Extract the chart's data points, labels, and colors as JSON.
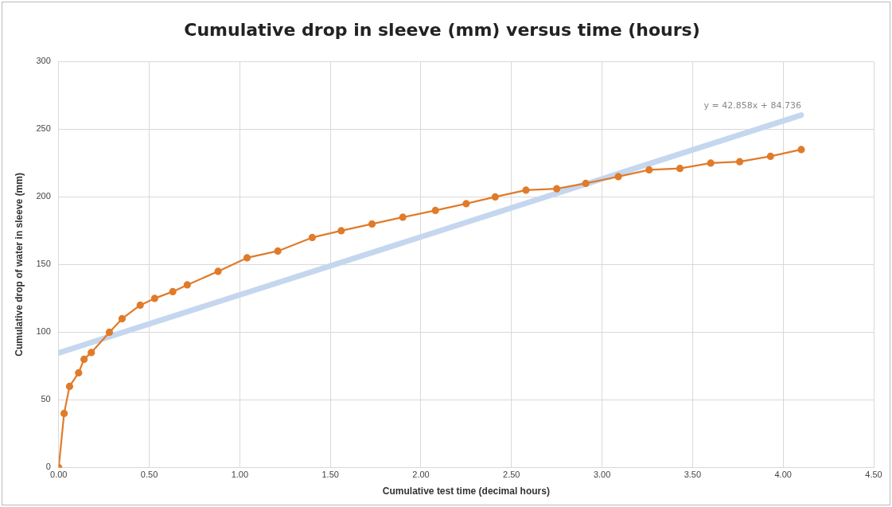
{
  "chart_data": {
    "type": "line",
    "title": "Cumulative drop in sleeve (mm) versus time (hours)",
    "xlabel": "Cumulative test time (decimal hours)",
    "ylabel": "Cumulative drop of water in sleeve (mm)",
    "xlim": [
      0,
      4.5
    ],
    "xticks": [
      {
        "value": 0,
        "label": "0.00"
      },
      {
        "value": 0.5,
        "label": "0.50"
      },
      {
        "value": 1,
        "label": "1.00"
      },
      {
        "value": 1.5,
        "label": "1.50"
      },
      {
        "value": 2,
        "label": "2.00"
      },
      {
        "value": 2.5,
        "label": "2.50"
      },
      {
        "value": 3,
        "label": "3.00"
      },
      {
        "value": 3.5,
        "label": "3.50"
      },
      {
        "value": 4,
        "label": "4.00"
      },
      {
        "value": 4.5,
        "label": "4.50"
      }
    ],
    "ylim": [
      0,
      300
    ],
    "yticks": [
      0,
      50,
      100,
      150,
      200,
      250,
      300
    ],
    "grid": true,
    "legend": false,
    "marker": "circle",
    "line_style": "solid",
    "series": [
      {
        "color": "#e07b2a",
        "x": [
          0,
          0.03,
          0.06,
          0.11,
          0.14,
          0.18,
          0.28,
          0.35,
          0.45,
          0.53,
          0.63,
          0.71,
          0.88,
          1.04,
          1.21,
          1.4,
          1.56,
          1.73,
          1.9,
          2.08,
          2.25,
          2.41,
          2.58,
          2.75,
          2.91,
          3.09,
          3.26,
          3.43,
          3.6,
          3.76,
          3.93,
          4.1
        ],
        "values": [
          0,
          40,
          60,
          70,
          80,
          85,
          100,
          110,
          120,
          125,
          130,
          135,
          145,
          155,
          160,
          170,
          175,
          180,
          185,
          190,
          195,
          200,
          205,
          206,
          210,
          215,
          220,
          221,
          225,
          226,
          230,
          235
        ]
      },
      {
        "color": "#c5d6ef",
        "marker": "none",
        "x": [
          0,
          4.1
        ],
        "values": [
          84.7,
          260.5
        ]
      }
    ],
    "annotations": [
      {
        "text": "y = 42.858x + 84.736",
        "x": 4.1,
        "y": 260.5
      }
    ]
  }
}
